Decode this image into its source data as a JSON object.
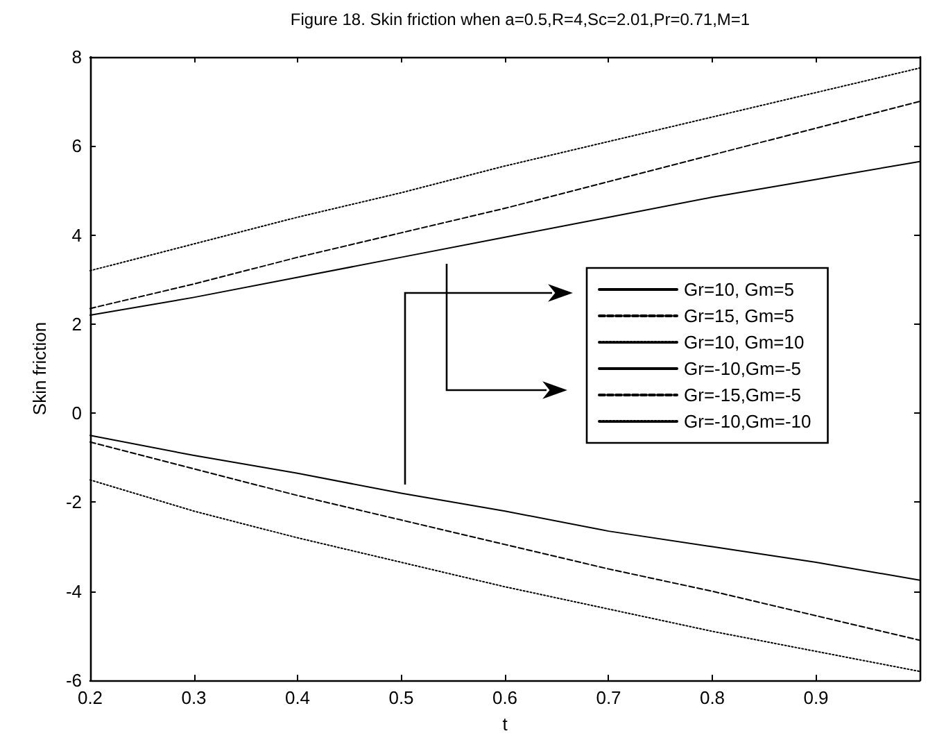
{
  "chart_data": {
    "type": "line",
    "title": "Figure 18. Skin friction when a=0.5,R=4,Sc=2.01,Pr=0.71,M=1",
    "xlabel": "t",
    "ylabel": "Skin friction",
    "x": [
      0.2,
      0.3,
      0.4,
      0.5,
      0.6,
      0.7,
      0.8,
      0.9,
      1.0
    ],
    "series": [
      {
        "name": "Gr=10, Gm=5",
        "color": "#000000",
        "line_style": "solid",
        "values": [
          2.2,
          2.6,
          3.05,
          3.5,
          3.95,
          4.4,
          4.85,
          5.25,
          5.65
        ]
      },
      {
        "name": "Gr=15, Gm=5",
        "color": "#000000",
        "line_style": "dashed",
        "values": [
          2.35,
          2.9,
          3.5,
          4.05,
          4.6,
          5.2,
          5.8,
          6.4,
          7.0
        ]
      },
      {
        "name": "Gr=10, Gm=10",
        "color": "#000000",
        "line_style": "dotted",
        "values": [
          3.2,
          3.8,
          4.4,
          4.95,
          5.55,
          6.1,
          6.65,
          7.2,
          7.75
        ]
      },
      {
        "name": "Gr=-10,Gm=-5",
        "color": "#000000",
        "line_style": "solid",
        "values": [
          -0.5,
          -0.95,
          -1.35,
          -1.8,
          -2.2,
          -2.65,
          -3.0,
          -3.35,
          -3.75
        ]
      },
      {
        "name": "Gr=-15,Gm=-5",
        "color": "#000000",
        "line_style": "dashed",
        "values": [
          -0.65,
          -1.25,
          -1.85,
          -2.4,
          -2.95,
          -3.5,
          -4.0,
          -4.55,
          -5.1
        ]
      },
      {
        "name": "Gr=-10,Gm=-10",
        "color": "#000000",
        "line_style": "dotted",
        "values": [
          -1.5,
          -2.2,
          -2.8,
          -3.35,
          -3.9,
          -4.4,
          -4.9,
          -5.35,
          -5.8
        ]
      }
    ],
    "xlim": [
      0.2,
      1.0
    ],
    "xticks": [
      0.2,
      0.3,
      0.4,
      0.5,
      0.6,
      0.7,
      0.8,
      0.9
    ],
    "ylim": [
      -6,
      8
    ],
    "yticks": [
      -6,
      -4,
      -2,
      0,
      2,
      4,
      6,
      8
    ],
    "grid": false,
    "legend": "right",
    "marker": "none"
  }
}
